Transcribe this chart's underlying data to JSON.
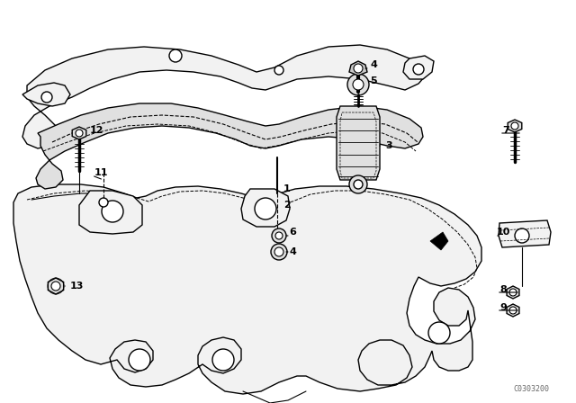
{
  "background_color": "#ffffff",
  "line_color": "#000000",
  "watermark": "C0303200",
  "fill_light": "#f2f2f2",
  "fill_mid": "#e0e0e0",
  "fill_dark": "#c8c8c8"
}
